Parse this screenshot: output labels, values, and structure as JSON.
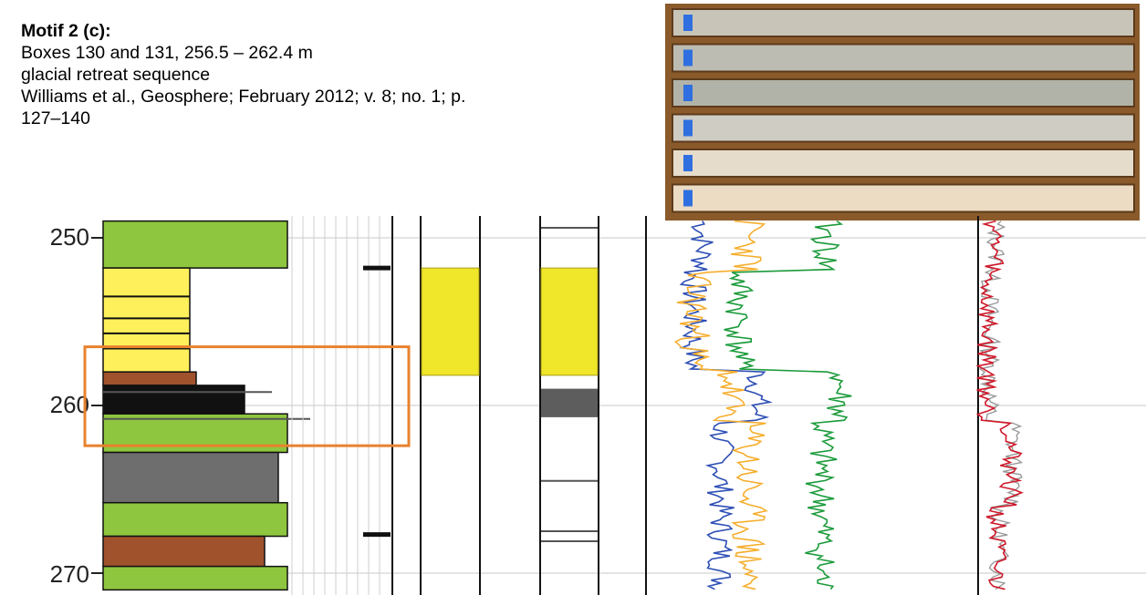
{
  "caption": {
    "title": "Motif 2 (c):",
    "lines": [
      "Boxes 130 and 131, 256.5 – 262.4 m",
      "glacial retreat sequence",
      "Williams et al., Geosphere; February 2012; v. 8; no. 1; p.",
      "127–140"
    ]
  },
  "depth_axis": {
    "ticks": [
      "250",
      "260",
      "270"
    ],
    "range_m": [
      249,
      271
    ]
  },
  "highlight": {
    "label": "Boxes 130 and 131",
    "top_m": 256.5,
    "bottom_m": 262.4,
    "color": "#e8822e"
  },
  "core_photo": {
    "box_count": 6
  },
  "colors": {
    "diamict": "#8ec63f",
    "sand": "#fdf05a",
    "mud_brown": "#a0522d",
    "mud_grey": "#6e6e6e",
    "curve_blue": "#2e4fb5",
    "curve_orange": "#f6ae2d",
    "curve_green": "#1a9a3a",
    "curve_red": "#d0192b",
    "curve_grey": "#9a9a9a"
  }
}
